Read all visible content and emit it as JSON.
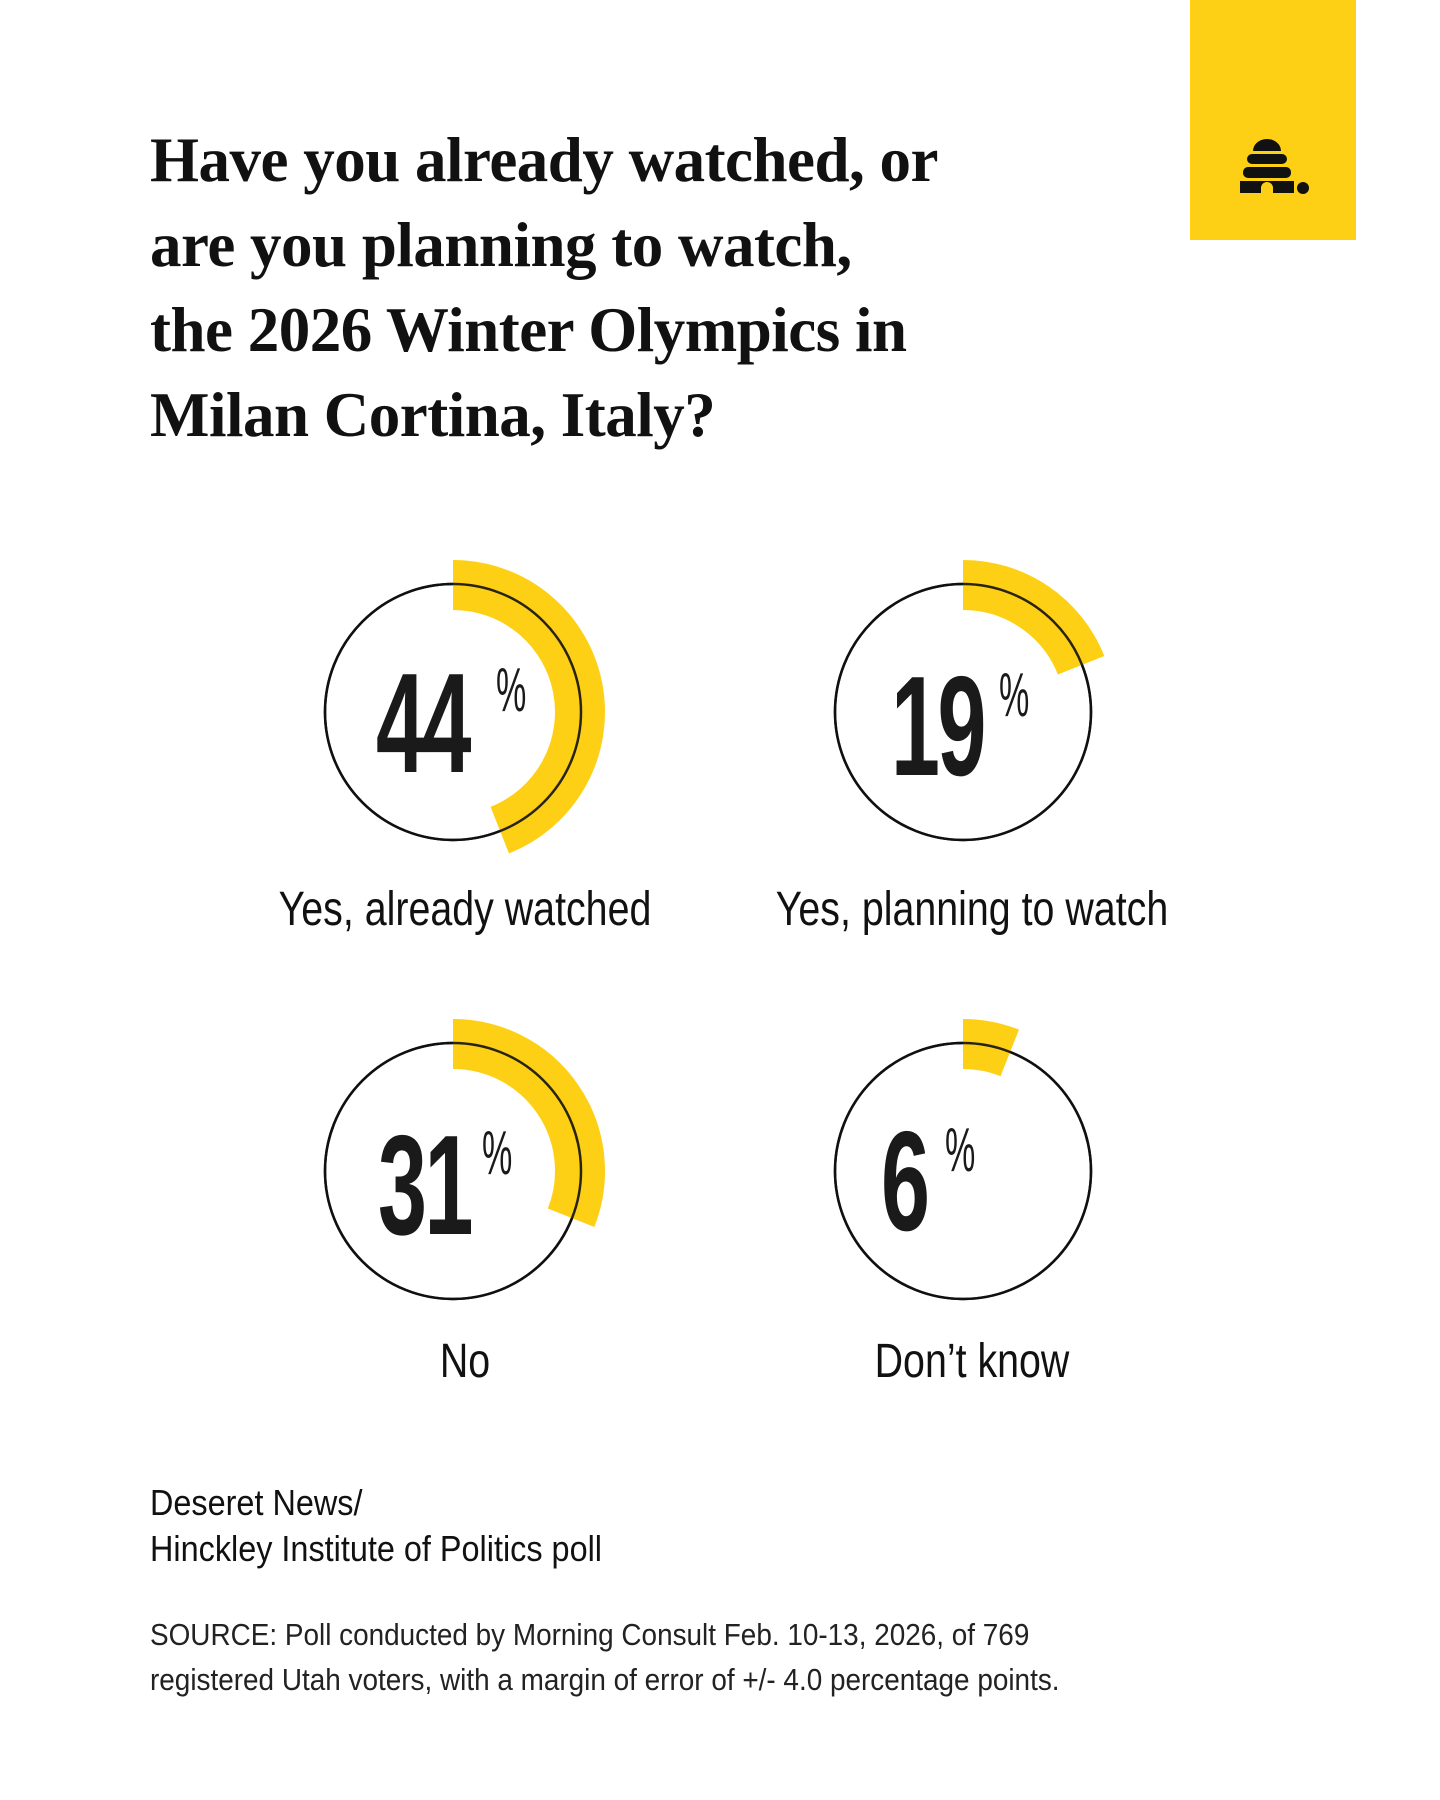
{
  "brand": {
    "logo_icon": "beehive-icon",
    "accent_color": "#FDD016"
  },
  "title": {
    "lines": [
      "Have you already watched, or",
      "are you planning to watch,",
      "the 2026 Winter Olympics in",
      "Milan Cortina, Italy?"
    ]
  },
  "stats": [
    {
      "value": "44",
      "unit": "%",
      "label": "Yes, already watched"
    },
    {
      "value": "19",
      "unit": "%",
      "label": "Yes, planning to watch"
    },
    {
      "value": "31",
      "unit": "%",
      "label": "No"
    },
    {
      "value": "6",
      "unit": "%",
      "label": "Don’t know"
    }
  ],
  "credit": {
    "lines": [
      "Deseret News/",
      "Hinckley Institute of Politics poll"
    ]
  },
  "source": {
    "lines": [
      "SOURCE: Poll conducted by Morning Consult Feb. 10-13, 2026, of 769",
      "registered Utah voters, with a margin of error of +/- 4.0 percentage points."
    ]
  },
  "chart_data": {
    "type": "pie",
    "style": "radial progress rings (2x2 grid)",
    "title": "Have you already watched, or are you planning to watch, the 2026 Winter Olympics in Milan Cortina, Italy?",
    "categories": [
      "Yes, already watched",
      "Yes, planning to watch",
      "No",
      "Don’t know"
    ],
    "values": [
      44,
      19,
      31,
      6
    ],
    "unit": "%",
    "colors": {
      "arc": "#FDD016",
      "ring": "#111111"
    },
    "source": "Deseret News/Hinckley Institute of Politics poll; Poll conducted by Morning Consult Feb. 10-13, 2026, of 769 registered Utah voters, with a margin of error of +/- 4.0 percentage points."
  }
}
